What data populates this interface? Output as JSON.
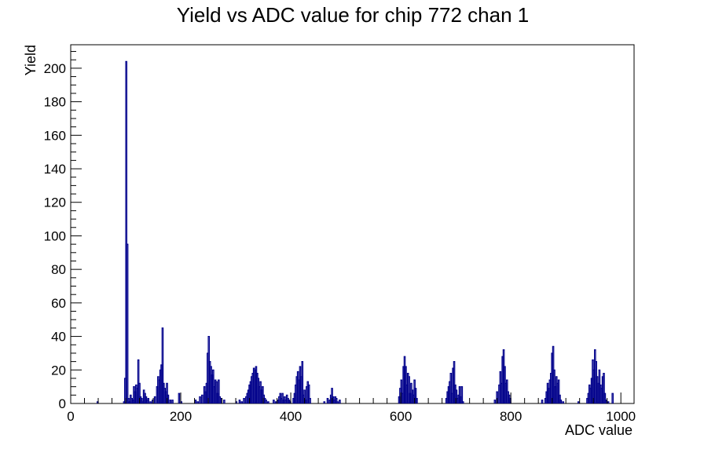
{
  "chart_data": {
    "type": "histogram",
    "title": "Yield vs ADC value for chip 772 chan 1",
    "xlabel": "ADC value",
    "ylabel": "Yield",
    "xlim": [
      0,
      1024
    ],
    "ylim": [
      0,
      214
    ],
    "bin_width": 2,
    "grid": false,
    "legend": "none",
    "series_color": "#00008b",
    "x_ticks": [
      0,
      200,
      400,
      600,
      800,
      1000
    ],
    "y_ticks": [
      0,
      20,
      40,
      60,
      80,
      100,
      120,
      140,
      160,
      180,
      200
    ],
    "bins": [
      [
        48,
        1
      ],
      [
        96,
        1
      ],
      [
        98,
        15
      ],
      [
        100,
        204
      ],
      [
        102,
        95
      ],
      [
        104,
        3
      ],
      [
        106,
        1
      ],
      [
        108,
        5
      ],
      [
        110,
        3
      ],
      [
        112,
        2
      ],
      [
        114,
        10
      ],
      [
        116,
        7
      ],
      [
        118,
        11
      ],
      [
        120,
        9
      ],
      [
        122,
        26
      ],
      [
        124,
        12
      ],
      [
        126,
        4
      ],
      [
        128,
        3
      ],
      [
        130,
        1
      ],
      [
        132,
        8
      ],
      [
        134,
        6
      ],
      [
        136,
        4
      ],
      [
        138,
        2
      ],
      [
        140,
        3
      ],
      [
        144,
        1
      ],
      [
        148,
        2
      ],
      [
        152,
        4
      ],
      [
        156,
        10
      ],
      [
        158,
        16
      ],
      [
        160,
        14
      ],
      [
        162,
        20
      ],
      [
        164,
        23
      ],
      [
        166,
        45
      ],
      [
        168,
        12
      ],
      [
        170,
        9
      ],
      [
        172,
        7
      ],
      [
        174,
        12
      ],
      [
        176,
        5
      ],
      [
        180,
        2
      ],
      [
        184,
        2
      ],
      [
        196,
        6
      ],
      [
        200,
        1
      ],
      [
        226,
        2
      ],
      [
        230,
        1
      ],
      [
        234,
        4
      ],
      [
        238,
        5
      ],
      [
        242,
        10
      ],
      [
        244,
        7
      ],
      [
        246,
        12
      ],
      [
        248,
        30
      ],
      [
        250,
        40
      ],
      [
        252,
        25
      ],
      [
        254,
        22
      ],
      [
        256,
        17
      ],
      [
        258,
        20
      ],
      [
        260,
        10
      ],
      [
        262,
        14
      ],
      [
        264,
        13
      ],
      [
        266,
        6
      ],
      [
        268,
        14
      ],
      [
        270,
        4
      ],
      [
        272,
        3
      ],
      [
        278,
        2
      ],
      [
        300,
        1
      ],
      [
        306,
        2
      ],
      [
        310,
        1
      ],
      [
        314,
        3
      ],
      [
        318,
        4
      ],
      [
        320,
        6
      ],
      [
        322,
        8
      ],
      [
        324,
        11
      ],
      [
        326,
        13
      ],
      [
        328,
        16
      ],
      [
        330,
        18
      ],
      [
        332,
        21
      ],
      [
        334,
        20
      ],
      [
        336,
        22
      ],
      [
        338,
        18
      ],
      [
        340,
        15
      ],
      [
        342,
        10
      ],
      [
        344,
        13
      ],
      [
        346,
        8
      ],
      [
        348,
        10
      ],
      [
        350,
        5
      ],
      [
        352,
        3
      ],
      [
        354,
        2
      ],
      [
        358,
        1
      ],
      [
        368,
        2
      ],
      [
        372,
        1
      ],
      [
        376,
        2
      ],
      [
        378,
        4
      ],
      [
        380,
        6
      ],
      [
        382,
        3
      ],
      [
        384,
        6
      ],
      [
        386,
        2
      ],
      [
        388,
        4
      ],
      [
        390,
        2
      ],
      [
        392,
        5
      ],
      [
        394,
        3
      ],
      [
        396,
        2
      ],
      [
        398,
        1
      ],
      [
        404,
        3
      ],
      [
        406,
        6
      ],
      [
        408,
        11
      ],
      [
        410,
        16
      ],
      [
        412,
        19
      ],
      [
        414,
        14
      ],
      [
        416,
        22
      ],
      [
        418,
        16
      ],
      [
        420,
        25
      ],
      [
        422,
        5
      ],
      [
        424,
        8
      ],
      [
        426,
        2
      ],
      [
        428,
        10
      ],
      [
        430,
        13
      ],
      [
        432,
        11
      ],
      [
        434,
        3
      ],
      [
        460,
        1
      ],
      [
        466,
        3
      ],
      [
        470,
        2
      ],
      [
        472,
        5
      ],
      [
        474,
        9
      ],
      [
        476,
        4
      ],
      [
        478,
        2
      ],
      [
        480,
        4
      ],
      [
        482,
        3
      ],
      [
        484,
        1
      ],
      [
        488,
        2
      ],
      [
        596,
        4
      ],
      [
        598,
        9
      ],
      [
        600,
        14
      ],
      [
        602,
        6
      ],
      [
        604,
        22
      ],
      [
        606,
        28
      ],
      [
        608,
        22
      ],
      [
        610,
        11
      ],
      [
        612,
        18
      ],
      [
        614,
        16
      ],
      [
        616,
        6
      ],
      [
        618,
        12
      ],
      [
        620,
        8
      ],
      [
        622,
        5
      ],
      [
        624,
        14
      ],
      [
        626,
        9
      ],
      [
        628,
        3
      ],
      [
        682,
        3
      ],
      [
        684,
        7
      ],
      [
        686,
        10
      ],
      [
        688,
        13
      ],
      [
        690,
        18
      ],
      [
        692,
        6
      ],
      [
        694,
        21
      ],
      [
        696,
        25
      ],
      [
        698,
        11
      ],
      [
        700,
        8
      ],
      [
        702,
        3
      ],
      [
        704,
        5
      ],
      [
        706,
        10
      ],
      [
        708,
        4
      ],
      [
        710,
        10
      ],
      [
        712,
        1
      ],
      [
        770,
        2
      ],
      [
        774,
        7
      ],
      [
        778,
        11
      ],
      [
        780,
        19
      ],
      [
        782,
        12
      ],
      [
        784,
        28
      ],
      [
        786,
        32
      ],
      [
        788,
        22
      ],
      [
        790,
        12
      ],
      [
        792,
        14
      ],
      [
        794,
        7
      ],
      [
        796,
        5
      ],
      [
        798,
        3
      ],
      [
        856,
        2
      ],
      [
        862,
        3
      ],
      [
        864,
        7
      ],
      [
        866,
        12
      ],
      [
        868,
        9
      ],
      [
        870,
        14
      ],
      [
        872,
        18
      ],
      [
        874,
        30
      ],
      [
        876,
        34
      ],
      [
        878,
        20
      ],
      [
        880,
        10
      ],
      [
        882,
        16
      ],
      [
        884,
        12
      ],
      [
        886,
        14
      ],
      [
        888,
        5
      ],
      [
        890,
        2
      ],
      [
        894,
        1
      ],
      [
        922,
        1
      ],
      [
        938,
        3
      ],
      [
        940,
        6
      ],
      [
        942,
        11
      ],
      [
        944,
        9
      ],
      [
        946,
        15
      ],
      [
        948,
        26
      ],
      [
        950,
        20
      ],
      [
        952,
        32
      ],
      [
        954,
        25
      ],
      [
        956,
        16
      ],
      [
        958,
        12
      ],
      [
        960,
        20
      ],
      [
        962,
        11
      ],
      [
        964,
        9
      ],
      [
        966,
        16
      ],
      [
        968,
        18
      ],
      [
        970,
        6
      ],
      [
        972,
        2
      ],
      [
        976,
        1
      ],
      [
        984,
        6
      ]
    ]
  }
}
